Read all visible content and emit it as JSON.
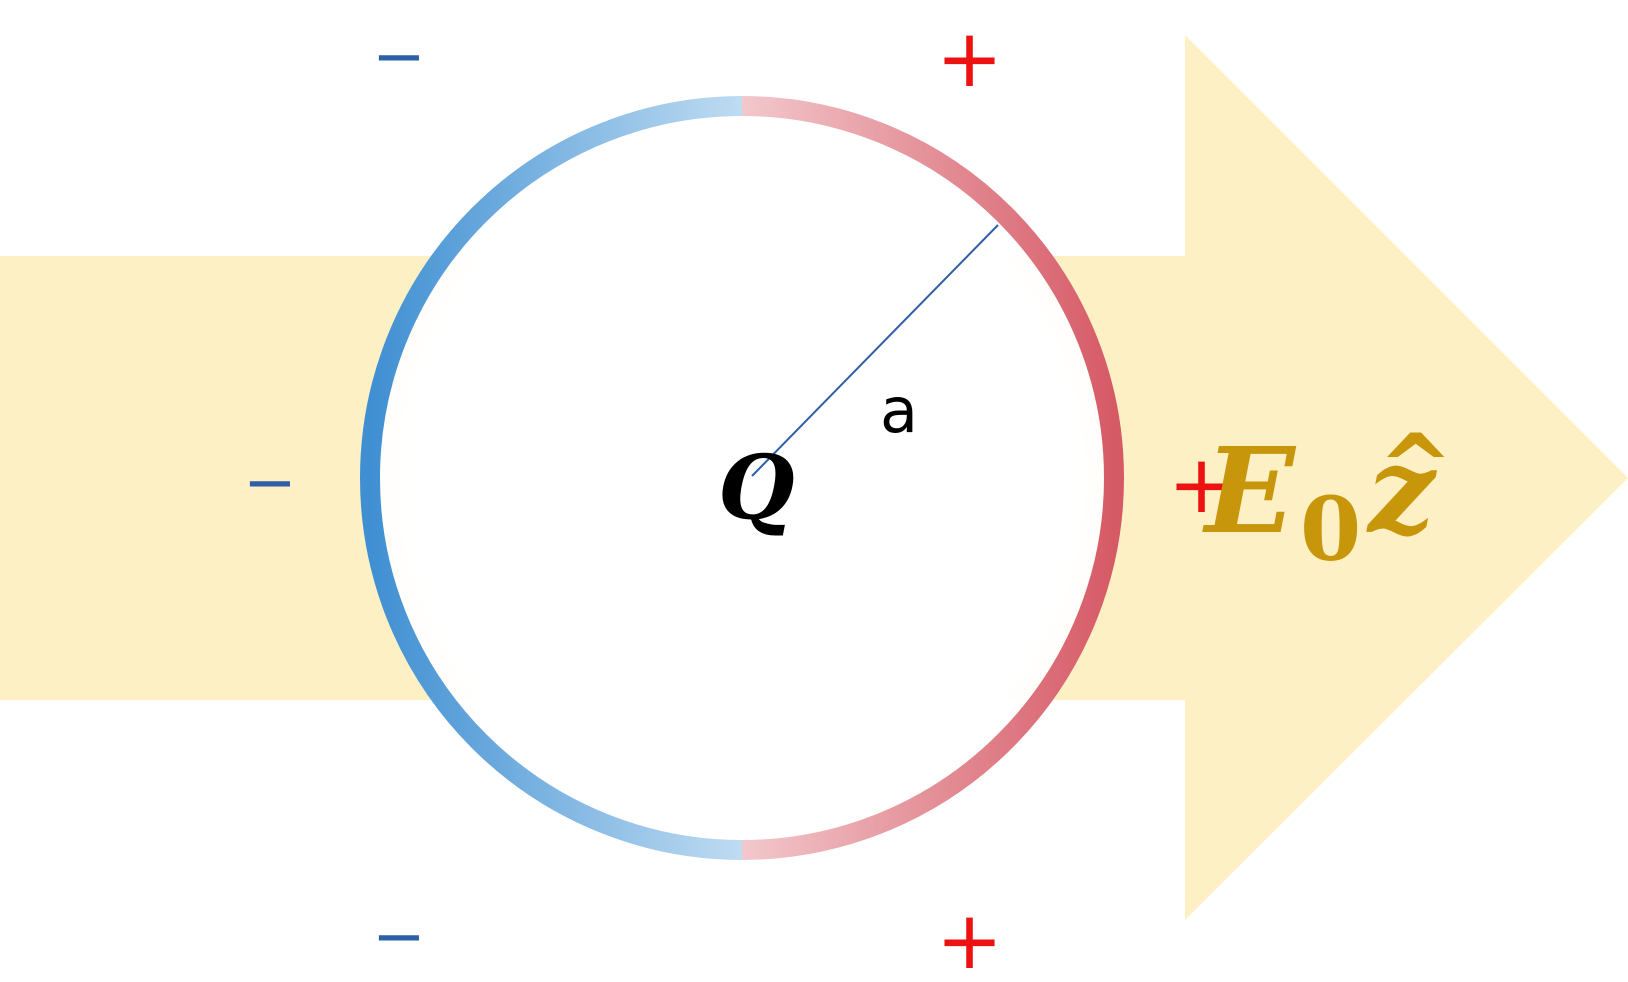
{
  "diagram": {
    "charge_label": "Q",
    "radius_label": "a",
    "field": {
      "symbol": "E",
      "subscript": "0",
      "unit_vector": "z",
      "hat": "^"
    },
    "negative_sign": "−",
    "positive_sign": "+",
    "colors": {
      "arrow_fill": "#fdf0c4",
      "negative": "#2e5fa8",
      "positive": "#ee1111",
      "sphere_left": "#3f8fd2",
      "sphere_right": "#d65a66",
      "field_label": "#c8960a",
      "radius_line": "#2e5fa8",
      "text": "#000000"
    }
  }
}
